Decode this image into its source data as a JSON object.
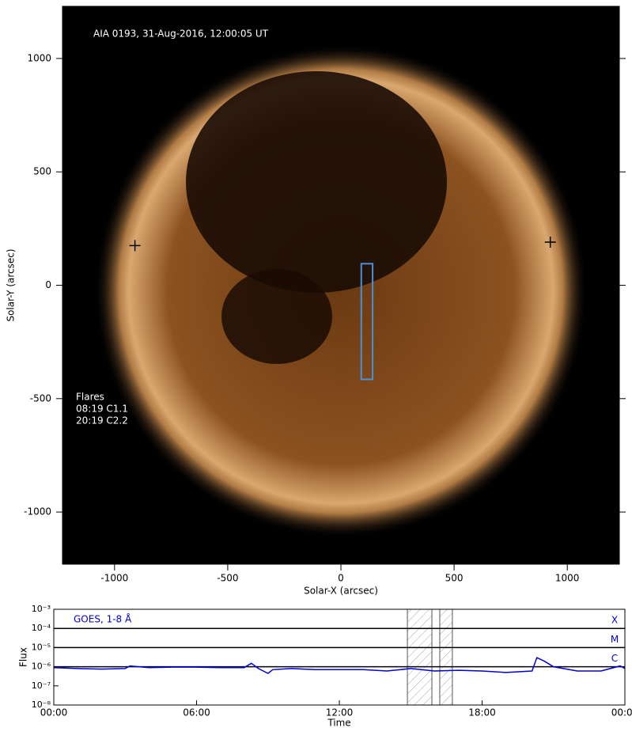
{
  "chart_data": [
    {
      "type": "image",
      "title": "AIA 0193, 31-Aug-2016, 12:00:05 UT",
      "annotations": [
        "Flares",
        "08:19 C1.1",
        "20:19 C2.2"
      ],
      "xlabel": "Solar-X (arcsec)",
      "ylabel": "Solar-Y (arcsec)",
      "xlim": [
        -1230,
        1230
      ],
      "ylim": [
        -1230,
        1230
      ],
      "xticks": [
        -1000,
        -500,
        0,
        500,
        1000
      ],
      "yticks": [
        -1000,
        -500,
        0,
        500,
        1000
      ],
      "box": {
        "x": [
          90,
          140
        ],
        "y": [
          -415,
          95
        ],
        "color": "#4a90d9"
      },
      "markers": {
        "x": [
          -910,
          925
        ],
        "y": [
          175,
          190
        ],
        "color": "#000000"
      }
    },
    {
      "type": "line",
      "title": "GOES, 1-8 Å",
      "xlabel": "Time",
      "ylabel": "Flux",
      "xlim": [
        0,
        24
      ],
      "ylim": [
        1e-08,
        0.001
      ],
      "log_y": true,
      "xticks": [
        {
          "value": 0,
          "label": "00:00"
        },
        {
          "value": 6,
          "label": "06:00"
        },
        {
          "value": 12,
          "label": "12:00"
        },
        {
          "value": 18,
          "label": "18:00"
        },
        {
          "value": 24,
          "label": "00:00"
        }
      ],
      "yticks": [
        {
          "value": 1e-08,
          "label": "10⁻⁸"
        },
        {
          "value": 1e-07,
          "label": "10⁻⁷"
        },
        {
          "value": 1e-06,
          "label": "10⁻⁶"
        },
        {
          "value": 1e-05,
          "label": "10⁻⁵"
        },
        {
          "value": 0.0001,
          "label": "10⁻⁴"
        },
        {
          "value": 0.001,
          "label": "10⁻³"
        }
      ],
      "thresholds": [
        {
          "value": 0.0001,
          "label": "X"
        },
        {
          "value": 1e-05,
          "label": "M"
        },
        {
          "value": 1e-06,
          "label": "C"
        }
      ],
      "shaded": [
        [
          14.86,
          15.89
        ],
        [
          16.22,
          16.75
        ]
      ],
      "x": [
        0,
        1,
        2,
        3,
        3.2,
        4,
        5,
        6,
        7,
        8,
        8.3,
        8.6,
        9,
        9.2,
        10,
        11,
        12,
        13,
        14,
        15,
        16,
        17,
        18,
        19,
        20.1,
        20.3,
        20.6,
        21,
        22,
        23,
        23.8,
        24
      ],
      "series": [
        {
          "color": "#0000dd",
          "values": [
            9e-07,
            8e-07,
            7.5e-07,
            8e-07,
            1.1e-06,
            9e-07,
            9.5e-07,
            9.5e-07,
            9e-07,
            9e-07,
            1.5e-06,
            8e-07,
            4.5e-07,
            7e-07,
            8e-07,
            7e-07,
            7e-07,
            7e-07,
            6e-07,
            8e-07,
            6e-07,
            6.5e-07,
            6e-07,
            5e-07,
            6e-07,
            3e-06,
            2e-06,
            1e-06,
            6e-07,
            6e-07,
            1.1e-06,
            8e-07
          ]
        }
      ]
    }
  ]
}
